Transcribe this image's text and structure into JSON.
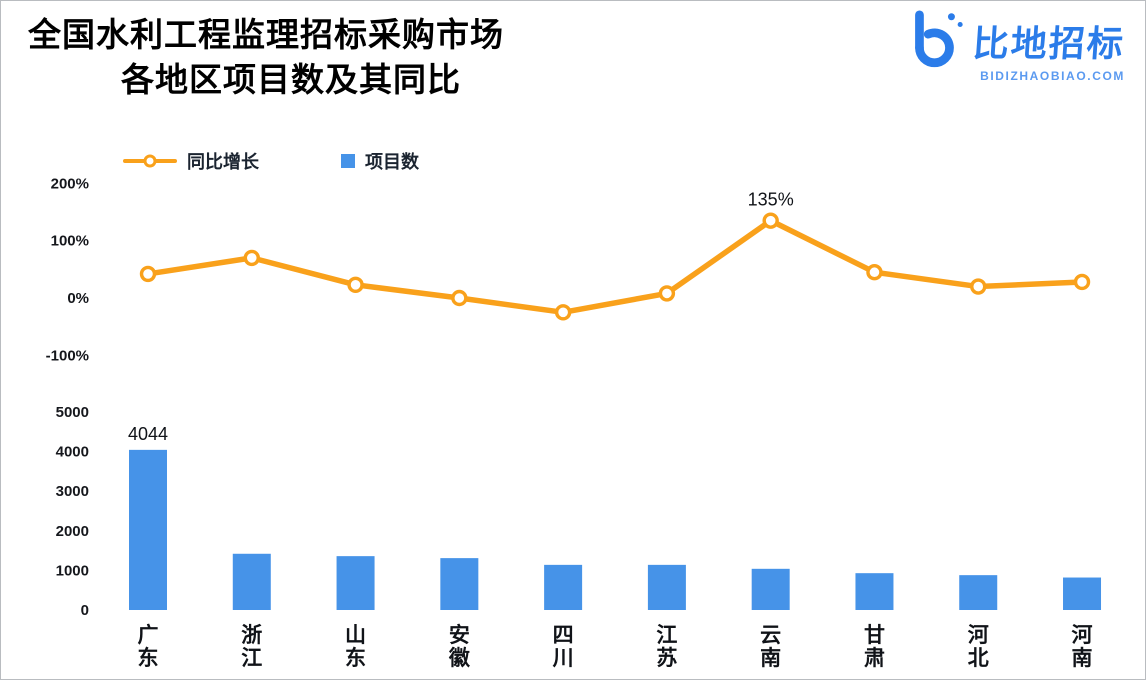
{
  "title": {
    "line1": "全国水利工程监理招标采购市场",
    "line2": "各地区项目数及其同比"
  },
  "logo": {
    "name": "比地招标",
    "domain": "BIDIZHAOBIAO.COM",
    "color": "#2b7ce9",
    "domain_color": "#5b9af0"
  },
  "legend": {
    "line": {
      "label": "同比增长"
    },
    "bar": {
      "label": "项目数"
    }
  },
  "chart_data": {
    "type": "combo",
    "categories": [
      "广东",
      "浙江",
      "山东",
      "安徽",
      "四川",
      "江苏",
      "云南",
      "甘肃",
      "河北",
      "河南"
    ],
    "series": [
      {
        "name": "同比增长",
        "type": "line",
        "unit": "%",
        "color": "#f9a11b",
        "values": [
          42,
          70,
          23,
          0,
          -25,
          8,
          135,
          45,
          20,
          28
        ],
        "data_labels": {
          "6": "135%"
        },
        "axis": {
          "side": "left",
          "min": -150,
          "max": 220,
          "ticks": [
            {
              "label": "200%",
              "value": 200
            },
            {
              "label": "100%",
              "value": 100
            },
            {
              "label": "0%",
              "value": 0
            },
            {
              "label": "-100%",
              "value": -100
            }
          ]
        }
      },
      {
        "name": "项目数",
        "type": "bar",
        "color": "#4693e8",
        "values": [
          4044,
          1420,
          1360,
          1310,
          1140,
          1140,
          1040,
          930,
          880,
          820
        ],
        "data_labels": {
          "0": "4044"
        },
        "axis": {
          "side": "left",
          "min": 0,
          "max": 5000,
          "ticks": [
            {
              "label": "5000",
              "value": 5000
            },
            {
              "label": "4000",
              "value": 4000
            },
            {
              "label": "3000",
              "value": 3000
            },
            {
              "label": "2000",
              "value": 2000
            },
            {
              "label": "1000",
              "value": 1000
            },
            {
              "label": "0",
              "value": 0
            }
          ]
        }
      }
    ],
    "layout": {
      "grid": false,
      "legend_position": "top-left"
    }
  }
}
